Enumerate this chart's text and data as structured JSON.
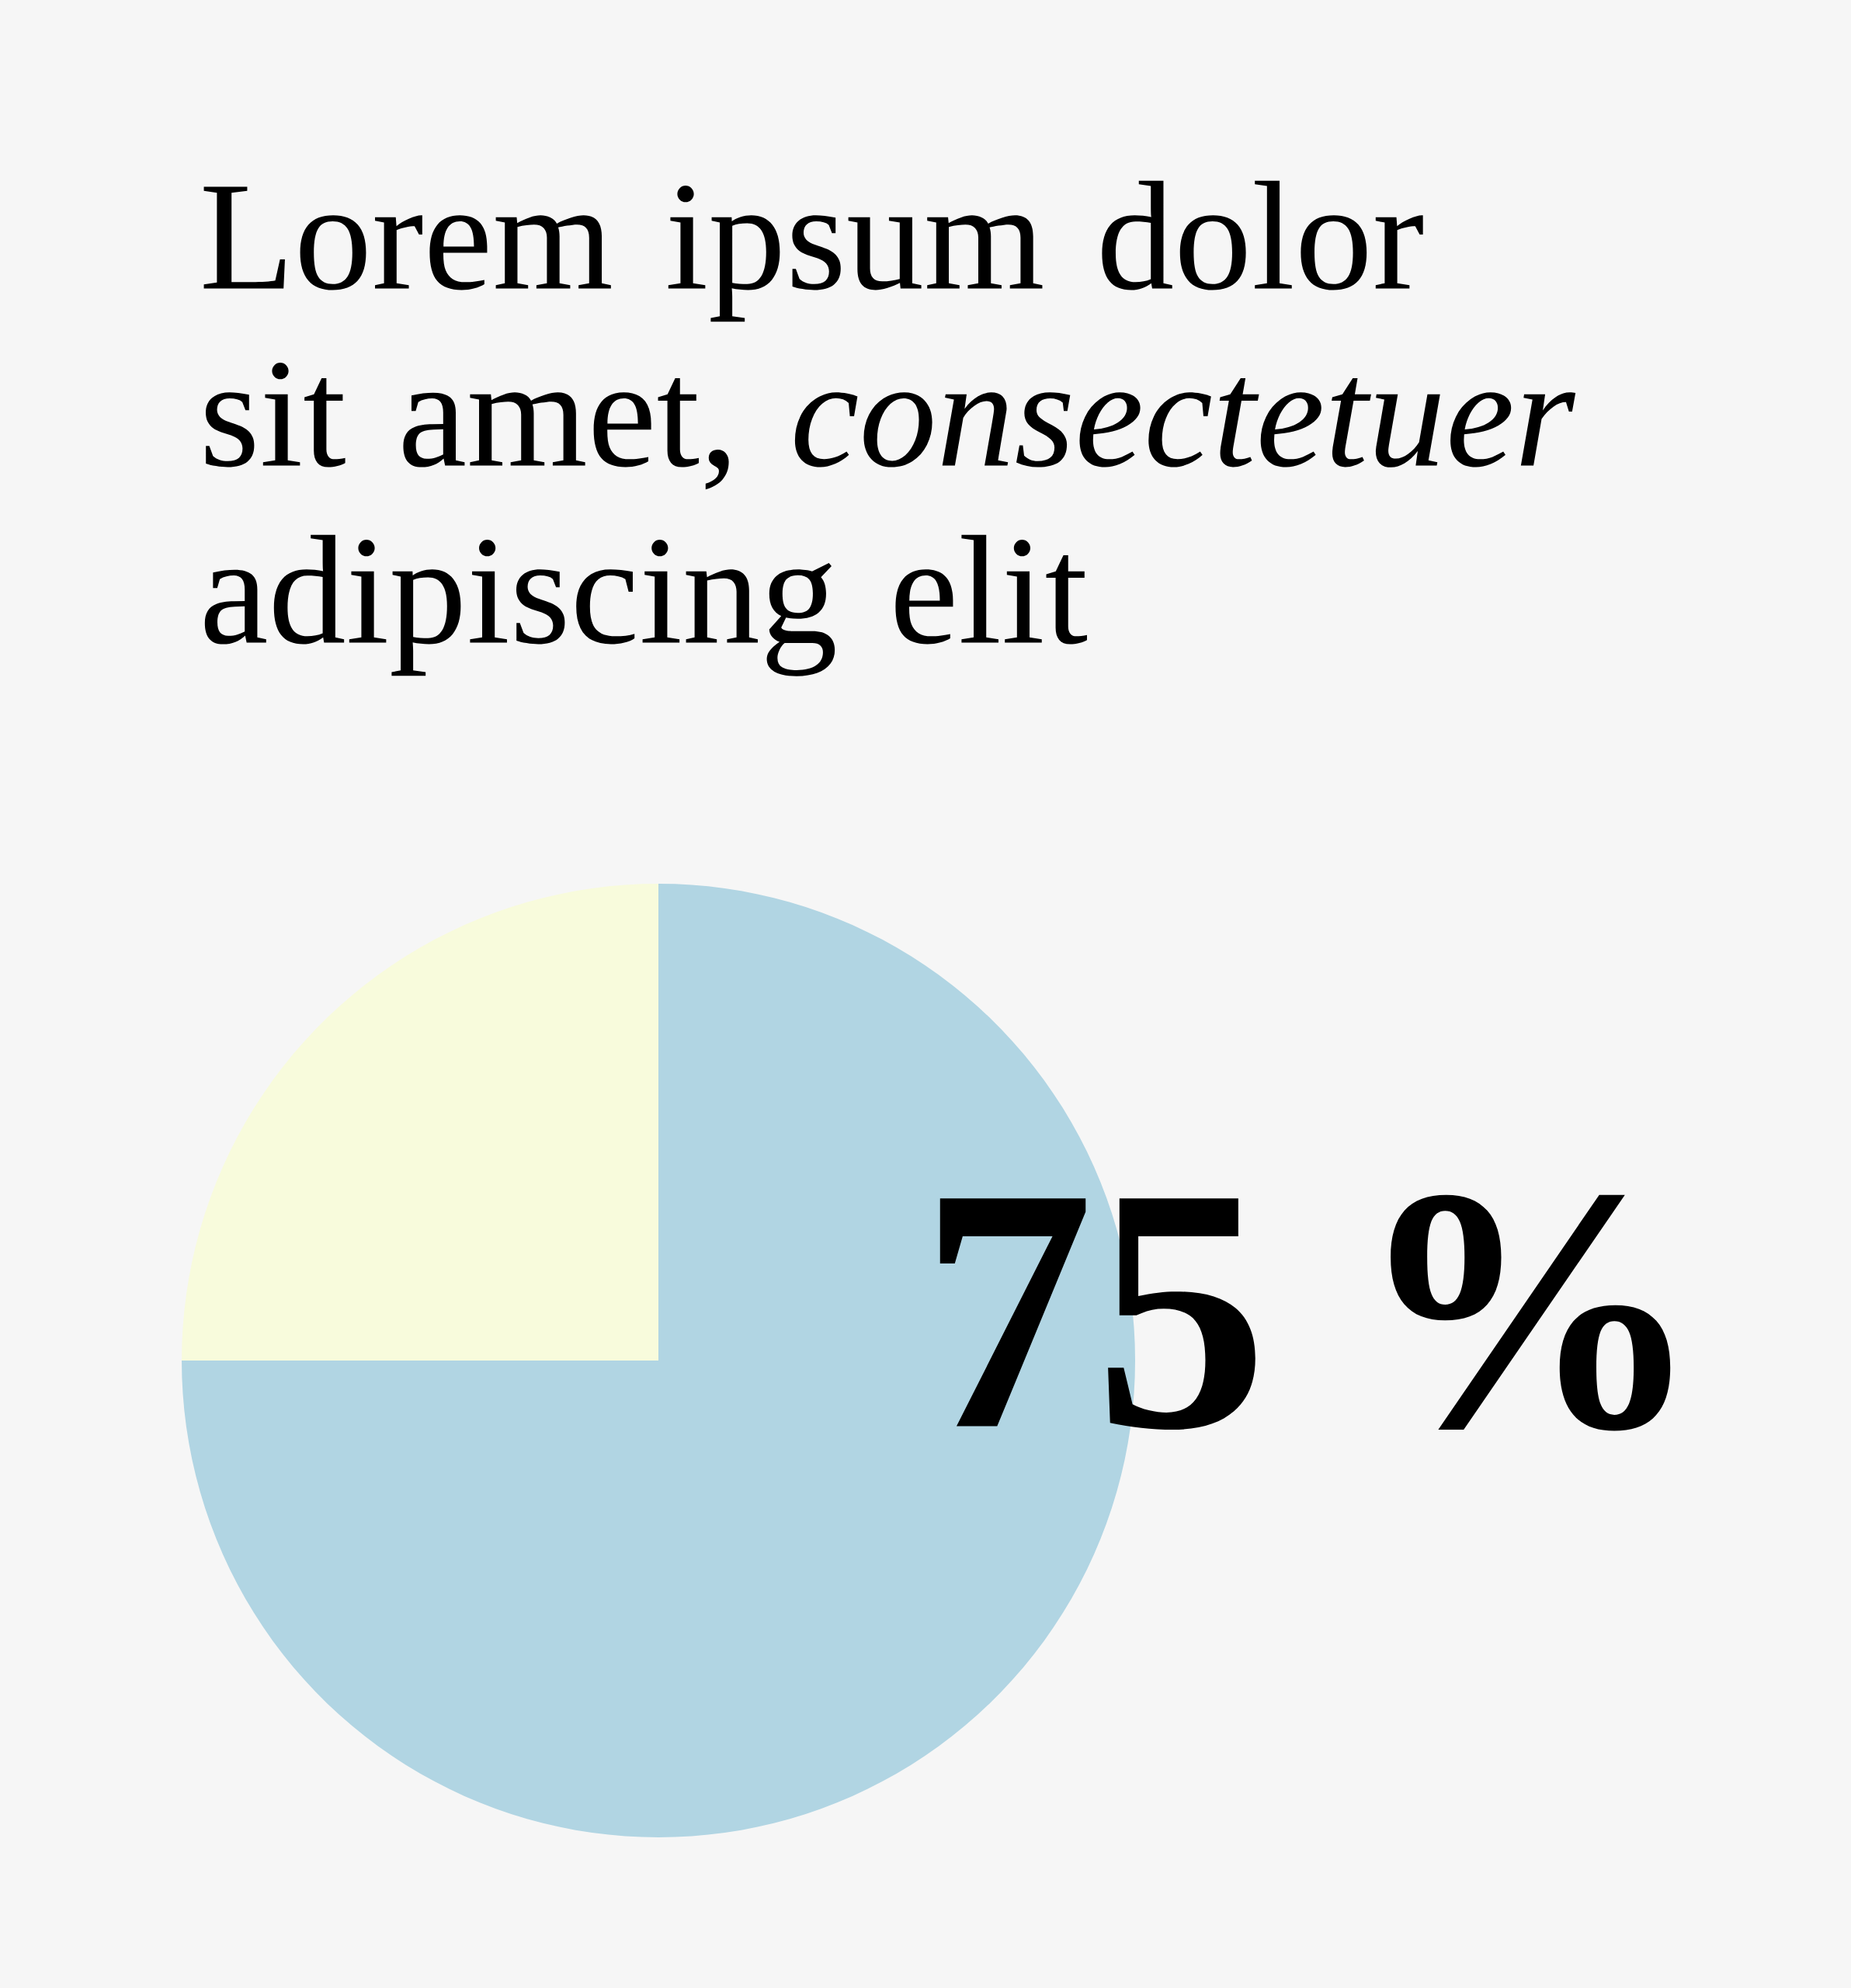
{
  "chart_data": {
    "type": "pie",
    "title": "Lorem ipsum dolor sit amet, *consectetuer* adipiscing elit",
    "categories": [
      null,
      null
    ],
    "values": [
      75,
      25
    ],
    "colors": [
      "#b1d5e3",
      "#f8fbdc"
    ],
    "value_labels": [
      "75 %",
      null
    ]
  }
}
